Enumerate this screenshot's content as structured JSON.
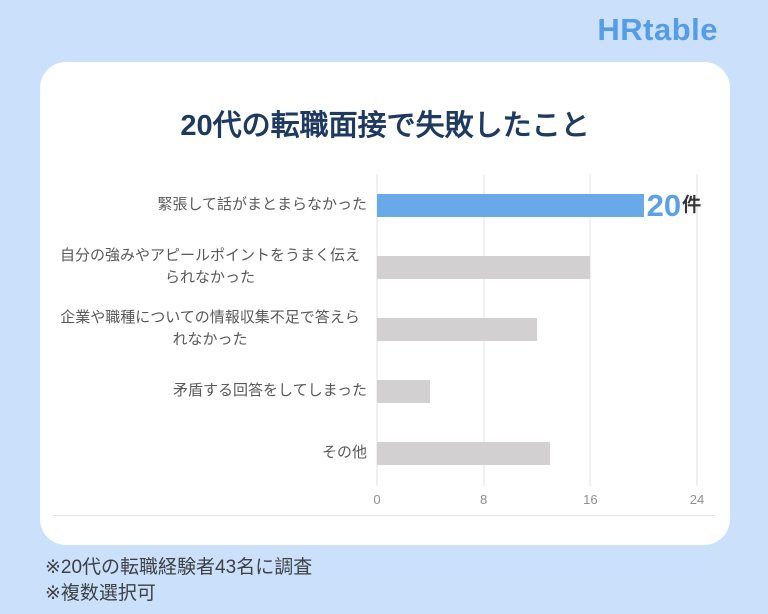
{
  "page": {
    "background_color": "#cbe1fb"
  },
  "logo": {
    "text": "HRtable",
    "color": "#549ce8"
  },
  "card": {
    "title": "20代の転職面接で失敗したこと"
  },
  "chart_data": {
    "type": "bar",
    "orientation": "horizontal",
    "title": "20代の転職面接で失敗したこと",
    "categories": [
      "緊張して話がまとまらなかった",
      "自分の強みやアピールポイントをうまく伝えられなかった",
      "企業や職種についての情報収集不足で答えられなかった",
      "矛盾する回答をしてしまった",
      "その他"
    ],
    "values": [
      20,
      16,
      12,
      4,
      13
    ],
    "unit": "件",
    "highlight_index": 0,
    "highlight_label": {
      "value": "20",
      "unit": "件"
    },
    "bar_color_highlight": "#6aa9e8",
    "bar_color_default": "#d2d0d0",
    "xlim": [
      0,
      24
    ],
    "xticks": [
      0,
      8,
      16,
      24
    ],
    "grid": true,
    "legend": false
  },
  "footnotes": [
    "※20代の転職経験者43名に調査",
    "※複数選択可"
  ]
}
